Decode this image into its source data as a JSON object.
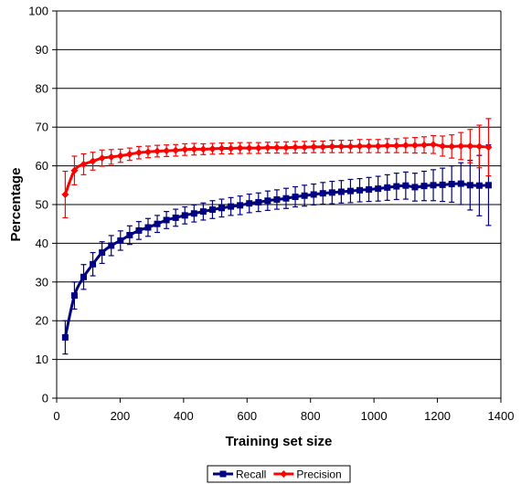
{
  "chart_data": {
    "type": "line",
    "title": "",
    "xlabel": "Training set size",
    "ylabel": "Percentage",
    "xlim": [
      0,
      1400
    ],
    "ylim": [
      0,
      100
    ],
    "x_ticks": [
      0,
      200,
      400,
      600,
      800,
      1000,
      1200,
      1400
    ],
    "y_ticks": [
      0,
      10,
      20,
      30,
      40,
      50,
      60,
      70,
      80,
      90,
      100
    ],
    "grid": "horizontal",
    "legend_position": "bottom",
    "x": [
      27,
      56,
      85,
      114,
      143,
      172,
      201,
      230,
      259,
      288,
      317,
      346,
      375,
      404,
      433,
      462,
      491,
      520,
      549,
      578,
      607,
      636,
      665,
      694,
      723,
      752,
      781,
      810,
      839,
      868,
      897,
      926,
      955,
      984,
      1013,
      1042,
      1071,
      1100,
      1129,
      1158,
      1187,
      1216,
      1245,
      1274,
      1303,
      1332,
      1361
    ],
    "series": [
      {
        "name": "Recall",
        "color": "#000080",
        "marker": "square",
        "values": [
          15.7,
          26.5,
          31.3,
          34.6,
          37.6,
          39.4,
          40.7,
          42.1,
          43.3,
          44.1,
          45.0,
          46.0,
          46.6,
          47.2,
          47.7,
          48.2,
          48.7,
          49.1,
          49.5,
          49.8,
          50.3,
          50.6,
          51.0,
          51.3,
          51.6,
          52.0,
          52.3,
          52.6,
          52.9,
          53.1,
          53.3,
          53.5,
          53.7,
          53.9,
          54.1,
          54.4,
          54.7,
          54.9,
          54.5,
          54.8,
          55.0,
          55.1,
          55.3,
          55.4,
          55.0,
          54.9,
          55.0
        ],
        "error": [
          4.3,
          3.5,
          3.2,
          3.0,
          2.8,
          2.6,
          2.5,
          2.4,
          2.3,
          2.3,
          2.2,
          2.2,
          2.2,
          2.2,
          2.2,
          2.2,
          2.3,
          2.3,
          2.3,
          2.4,
          2.4,
          2.4,
          2.5,
          2.5,
          2.6,
          2.6,
          2.7,
          2.7,
          2.8,
          2.9,
          2.9,
          3.0,
          3.0,
          3.1,
          3.2,
          3.3,
          3.4,
          3.5,
          3.6,
          3.8,
          4.0,
          4.3,
          4.7,
          5.4,
          6.4,
          7.8,
          10.4
        ]
      },
      {
        "name": "Precision",
        "color": "#ff0000",
        "marker": "diamond",
        "values": [
          52.6,
          58.8,
          60.4,
          61.2,
          62.0,
          62.3,
          62.6,
          63.0,
          63.4,
          63.6,
          63.8,
          63.9,
          64.0,
          64.2,
          64.3,
          64.3,
          64.4,
          64.5,
          64.5,
          64.6,
          64.6,
          64.6,
          64.7,
          64.7,
          64.7,
          64.8,
          64.8,
          64.9,
          64.9,
          65.0,
          65.0,
          65.0,
          65.1,
          65.1,
          65.1,
          65.2,
          65.2,
          65.3,
          65.3,
          65.4,
          65.5,
          65.1,
          65.0,
          65.1,
          65.1,
          65.0,
          64.8
        ],
        "error": [
          6.0,
          3.7,
          2.7,
          2.3,
          2.1,
          1.9,
          1.7,
          1.6,
          1.6,
          1.5,
          1.5,
          1.5,
          1.5,
          1.5,
          1.5,
          1.4,
          1.4,
          1.4,
          1.4,
          1.4,
          1.4,
          1.4,
          1.4,
          1.4,
          1.5,
          1.5,
          1.5,
          1.5,
          1.5,
          1.6,
          1.6,
          1.6,
          1.7,
          1.7,
          1.7,
          1.8,
          1.8,
          1.9,
          2.0,
          2.1,
          2.3,
          2.6,
          3.0,
          3.5,
          4.3,
          5.5,
          7.4
        ]
      }
    ]
  }
}
